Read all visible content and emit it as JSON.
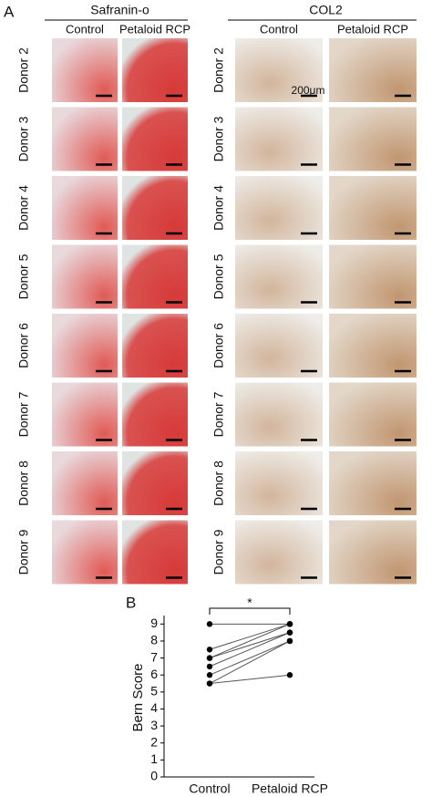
{
  "panel_a": {
    "label": "A",
    "scale_bar": "200μm",
    "rows": [
      "Donor 2",
      "Donor 3",
      "Donor 4",
      "Donor 5",
      "Donor 6",
      "Donor 7",
      "Donor 8",
      "Donor 9"
    ],
    "stains": [
      {
        "title": "Safranin-o",
        "columns": [
          "Control",
          "Petaloid RCP"
        ]
      },
      {
        "title": "COL2",
        "columns": [
          "Control",
          "Petaloid RCP"
        ]
      }
    ]
  },
  "chart_data": {
    "type": "paired-dot",
    "panel_label": "B",
    "annotation": "*",
    "y_label": "Bern Score",
    "categories": [
      "Control",
      "Petaloid RCP"
    ],
    "color": "#000000",
    "ylim": [
      0,
      9.5
    ],
    "yticks": [
      0,
      1,
      2,
      3,
      4,
      5,
      6,
      7,
      8,
      9
    ],
    "series": [
      {
        "values": [
          9,
          9
        ]
      },
      {
        "values": [
          7.5,
          9
        ]
      },
      {
        "values": [
          7,
          8.5
        ]
      },
      {
        "values": [
          6.5,
          8.5
        ]
      },
      {
        "values": [
          6,
          8
        ]
      },
      {
        "values": [
          5.5,
          8
        ]
      },
      {
        "values": [
          5.5,
          6
        ]
      },
      {
        "values": [
          7,
          9
        ]
      }
    ]
  }
}
